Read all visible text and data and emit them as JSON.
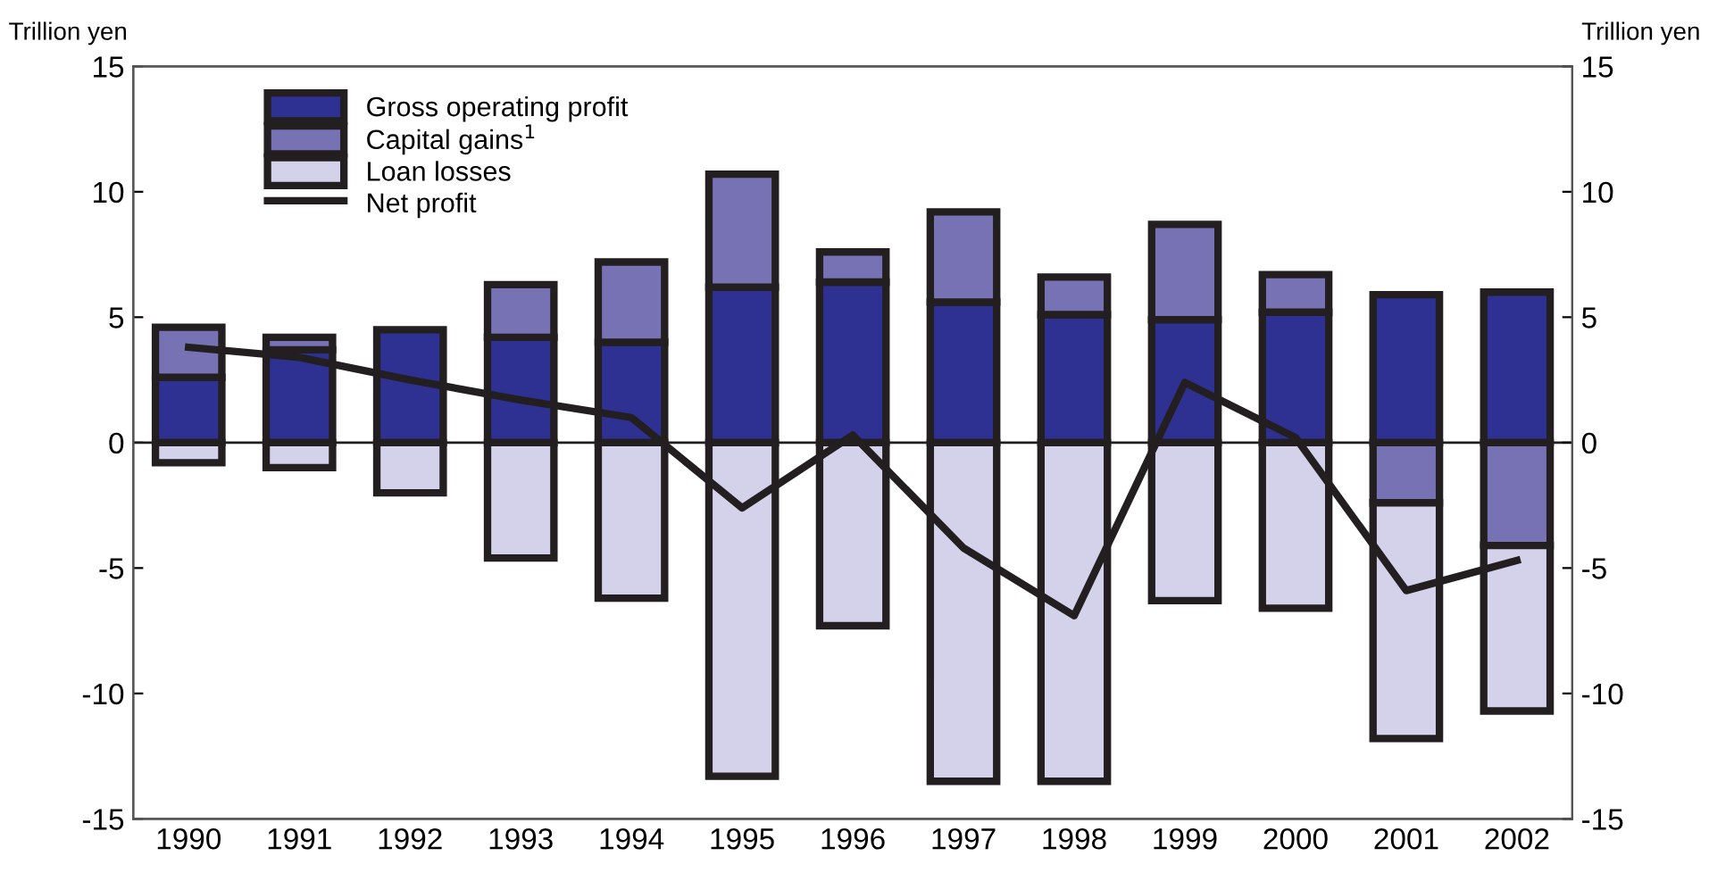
{
  "chart_data": {
    "type": "bar",
    "stacked": true,
    "ylabel": "Trillion yen",
    "y2label": "Trillion yen",
    "categories": [
      "1990",
      "1991",
      "1992",
      "1993",
      "1994",
      "1995",
      "1996",
      "1997",
      "1998",
      "1999",
      "2000",
      "2001",
      "2002"
    ],
    "series": [
      {
        "name": "Gross operating profit",
        "color": "#2e3192",
        "values": [
          2.6,
          3.7,
          4.5,
          4.2,
          4.0,
          6.2,
          6.4,
          5.6,
          5.1,
          4.9,
          5.2,
          5.9,
          6.0
        ]
      },
      {
        "name": "Capital gains$^{1}$",
        "color": "#7672b4",
        "values": [
          2.0,
          0.5,
          null,
          2.1,
          3.2,
          4.5,
          1.2,
          3.6,
          1.5,
          3.8,
          1.5,
          -2.4,
          -4.1
        ]
      },
      {
        "name": "Loan losses",
        "color": "#d3d2ea",
        "values": [
          -0.8,
          -1.0,
          -2.0,
          -4.6,
          -6.2,
          -13.3,
          -7.3,
          -13.5,
          -13.5,
          -6.3,
          -6.6,
          -9.4,
          -6.6
        ]
      },
      {
        "name": "Net profit",
        "type": "line",
        "color": "#231f20",
        "values": [
          3.8,
          3.4,
          2.5,
          1.7,
          1.0,
          -2.6,
          0.3,
          -4.2,
          -6.9,
          2.4,
          0.2,
          -5.9,
          -4.7
        ]
      }
    ],
    "ylim": [
      -15,
      15
    ],
    "yticks": [
      -15,
      -10,
      -5,
      0,
      5,
      10,
      15
    ],
    "y2lim": [
      -15,
      15
    ],
    "y2ticks": [
      -15,
      -10,
      -5,
      0,
      5,
      10,
      15
    ],
    "ref_lines": [
      {
        "axis": "y",
        "value": 0,
        "color": "#231f20"
      }
    ],
    "legend": "top left",
    "grid": false
  }
}
